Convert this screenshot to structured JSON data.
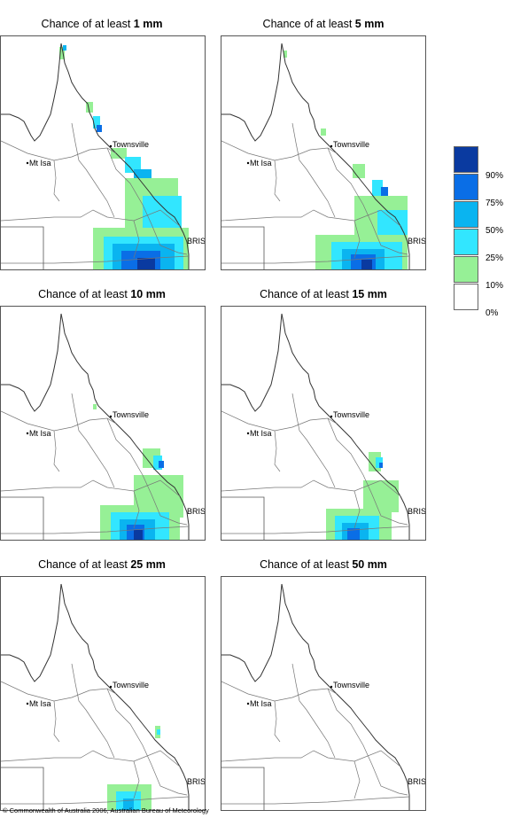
{
  "title_prefix": "Chance of at least",
  "panels": [
    {
      "amount": "1 mm"
    },
    {
      "amount": "5 mm"
    },
    {
      "amount": "10 mm"
    },
    {
      "amount": "15 mm"
    },
    {
      "amount": "25 mm"
    },
    {
      "amount": "50 mm"
    }
  ],
  "places": {
    "townsville": "Townsville",
    "mt_isa": "Mt Isa",
    "bris": "BRIS"
  },
  "legend": {
    "labels": [
      "90%",
      "75%",
      "50%",
      "25%",
      "10%",
      "0%"
    ],
    "colors": [
      "#0a3aa0",
      "#0a6ee6",
      "#0ab4f0",
      "#32e6ff",
      "#96f096",
      "#ffffff"
    ]
  },
  "footer": "© Commonwealth of Australia 2006, Australian Bureau of Meteorology"
}
